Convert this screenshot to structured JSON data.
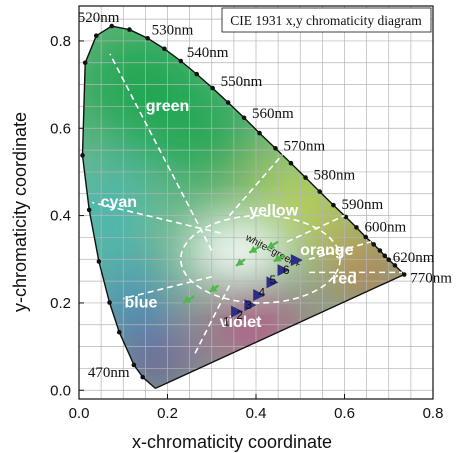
{
  "chart_data": {
    "type": "scatter",
    "title": "CIE 1931 x,y chromaticity diagram",
    "xlabel": "x-chromaticity coordinate",
    "ylabel": "y-chromaticity coordinate",
    "xlim": [
      0.0,
      0.8
    ],
    "ylim": [
      -0.02,
      0.88
    ],
    "x_ticks": [
      {
        "value": 0.0,
        "label": "0.0"
      },
      {
        "value": 0.2,
        "label": "0.2"
      },
      {
        "value": 0.4,
        "label": "0.4"
      },
      {
        "value": 0.6,
        "label": "0.6"
      },
      {
        "value": 0.8,
        "label": "0.8"
      }
    ],
    "y_ticks": [
      {
        "value": 0.0,
        "label": "0.0"
      },
      {
        "value": 0.2,
        "label": "0.2"
      },
      {
        "value": 0.4,
        "label": "0.4"
      },
      {
        "value": 0.6,
        "label": "0.6"
      },
      {
        "value": 0.8,
        "label": "0.8"
      }
    ],
    "grid": true,
    "spectral_locus": [
      [
        0.174,
        0.005
      ],
      [
        0.172,
        0.005
      ],
      [
        0.144,
        0.03
      ],
      [
        0.124,
        0.058
      ],
      [
        0.091,
        0.133
      ],
      [
        0.069,
        0.201
      ],
      [
        0.045,
        0.295
      ],
      [
        0.023,
        0.413
      ],
      [
        0.008,
        0.538
      ],
      [
        0.014,
        0.75
      ],
      [
        0.039,
        0.812
      ],
      [
        0.074,
        0.834
      ],
      [
        0.114,
        0.826
      ],
      [
        0.155,
        0.806
      ],
      [
        0.193,
        0.782
      ],
      [
        0.23,
        0.754
      ],
      [
        0.266,
        0.724
      ],
      [
        0.302,
        0.692
      ],
      [
        0.337,
        0.659
      ],
      [
        0.373,
        0.624
      ],
      [
        0.408,
        0.589
      ],
      [
        0.444,
        0.554
      ],
      [
        0.479,
        0.52
      ],
      [
        0.512,
        0.487
      ],
      [
        0.544,
        0.455
      ],
      [
        0.575,
        0.424
      ],
      [
        0.603,
        0.397
      ],
      [
        0.627,
        0.373
      ],
      [
        0.648,
        0.351
      ],
      [
        0.666,
        0.334
      ],
      [
        0.68,
        0.32
      ],
      [
        0.691,
        0.308
      ],
      [
        0.7,
        0.299
      ],
      [
        0.714,
        0.286
      ],
      [
        0.735,
        0.265
      ]
    ],
    "wavelength_labels": [
      {
        "label": "470nm",
        "x": 0.124,
        "y": 0.058
      },
      {
        "label": "520nm",
        "x": 0.074,
        "y": 0.834
      },
      {
        "label": "530nm",
        "x": 0.155,
        "y": 0.806
      },
      {
        "label": "540nm",
        "x": 0.23,
        "y": 0.754
      },
      {
        "label": "550nm",
        "x": 0.302,
        "y": 0.692
      },
      {
        "label": "560nm",
        "x": 0.373,
        "y": 0.624
      },
      {
        "label": "570nm",
        "x": 0.444,
        "y": 0.554
      },
      {
        "label": "580nm",
        "x": 0.512,
        "y": 0.487
      },
      {
        "label": "590nm",
        "x": 0.575,
        "y": 0.424
      },
      {
        "label": "600nm",
        "x": 0.627,
        "y": 0.373
      },
      {
        "label": "620nm",
        "x": 0.691,
        "y": 0.308
      },
      {
        "label": "770nm",
        "x": 0.735,
        "y": 0.265
      }
    ],
    "regions": [
      {
        "label": "green",
        "x": 0.2,
        "y": 0.64
      },
      {
        "label": "cyan",
        "x": 0.09,
        "y": 0.42
      },
      {
        "label": "yellow",
        "x": 0.44,
        "y": 0.4
      },
      {
        "label": "orange",
        "x": 0.56,
        "y": 0.31
      },
      {
        "label": "red",
        "x": 0.6,
        "y": 0.245
      },
      {
        "label": "blue",
        "x": 0.14,
        "y": 0.19
      },
      {
        "label": "violet",
        "x": 0.365,
        "y": 0.145
      }
    ],
    "white_region": {
      "label": "white=green+",
      "center": [
        0.41,
        0.3
      ],
      "radii": [
        0.18,
        0.1
      ]
    },
    "series": [
      {
        "marker": "triangle",
        "color": "#2b2f86",
        "points": [
          {
            "label": "1",
            "x": 0.355,
            "y": 0.18
          },
          {
            "label": "2",
            "x": 0.385,
            "y": 0.195
          },
          {
            "label": "3",
            "x": 0.405,
            "y": 0.218
          },
          {
            "label": "4",
            "x": 0.435,
            "y": 0.247
          },
          {
            "label": "5",
            "x": 0.46,
            "y": 0.275
          },
          {
            "label": "6",
            "x": 0.49,
            "y": 0.298
          }
        ]
      }
    ],
    "arrows": [
      {
        "from": [
          0.26,
          0.215
        ],
        "to": [
          0.235,
          0.2
        ]
      },
      {
        "from": [
          0.315,
          0.24
        ],
        "to": [
          0.295,
          0.225
        ]
      },
      {
        "from": [
          0.375,
          0.3
        ],
        "to": [
          0.355,
          0.285
        ]
      },
      {
        "from": [
          0.41,
          0.33
        ],
        "to": [
          0.385,
          0.315
        ]
      },
      {
        "from": [
          0.45,
          0.34
        ],
        "to": [
          0.425,
          0.325
        ]
      },
      {
        "from": [
          0.465,
          0.31
        ],
        "to": [
          0.44,
          0.295
        ]
      }
    ],
    "boundaries": [
      [
        [
          0.3,
          0.32
        ],
        [
          0.07,
          0.77
        ]
      ],
      [
        [
          0.32,
          0.36
        ],
        [
          0.03,
          0.43
        ]
      ],
      [
        [
          0.34,
          0.4
        ],
        [
          0.46,
          0.54
        ]
      ],
      [
        [
          0.47,
          0.34
        ],
        [
          0.6,
          0.4
        ]
      ],
      [
        [
          0.52,
          0.3
        ],
        [
          0.66,
          0.34
        ]
      ],
      [
        [
          0.52,
          0.27
        ],
        [
          0.73,
          0.27
        ]
      ],
      [
        [
          0.3,
          0.26
        ],
        [
          0.1,
          0.21
        ]
      ],
      [
        [
          0.34,
          0.24
        ],
        [
          0.26,
          0.08
        ]
      ]
    ],
    "colors": {
      "violet": "#6a2a98",
      "blue": "#2d7fd0",
      "cyan": "#2eb8c8",
      "green": "#1ea651",
      "yellow": "#e9e62e",
      "orange": "#f59b29",
      "red": "#e7212a",
      "magenta": "#d2308a",
      "white": "#ffffff",
      "marker": "#2b2f86",
      "arrow": "#4fb848"
    }
  }
}
